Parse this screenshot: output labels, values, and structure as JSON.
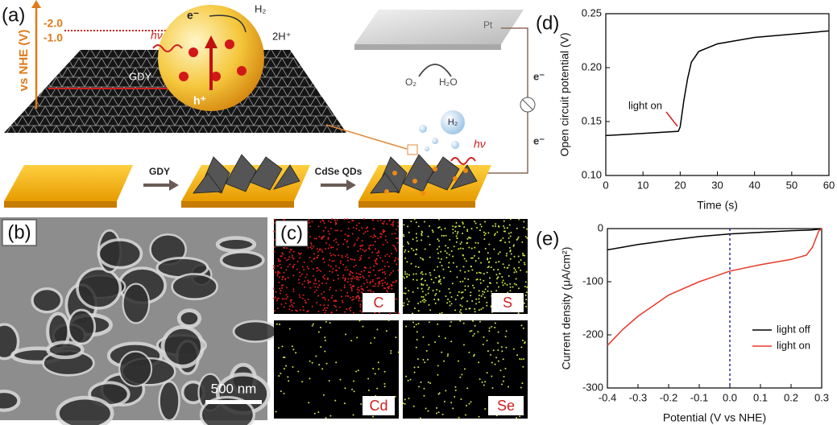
{
  "panels": {
    "a": {
      "label": "(a)",
      "axis_label": "vs NHE (V)",
      "ticks": [
        "-2.0",
        "-1.0"
      ],
      "hv": "hν",
      "electron": "e⁻",
      "h2": "H₂",
      "protons": "2H⁺",
      "gdy": "GDY",
      "hole": "h⁺",
      "pt": "Pt",
      "o2": "O₂",
      "h2o": "H₂O",
      "circuit_electrons": [
        "e⁻",
        "e⁻"
      ],
      "bubble": "H₂",
      "hv2": "hν",
      "step1": "GDY",
      "step2": "CdSe QDs"
    },
    "b": {
      "label": "(b)",
      "scale": "500 nm"
    },
    "c": {
      "label": "(c)",
      "maps": [
        "C",
        "S",
        "Cd",
        "Se"
      ]
    }
  },
  "chart_data": [
    {
      "type": "line",
      "panel": "(d)",
      "xlabel": "Time (s)",
      "ylabel": "Open circuit potential (V)",
      "x": [
        0,
        10,
        19.5,
        20,
        21,
        22,
        23,
        25,
        30,
        40,
        50,
        60
      ],
      "series": [
        {
          "color": "#000000",
          "values": [
            0.137,
            0.139,
            0.141,
            0.145,
            0.17,
            0.19,
            0.205,
            0.215,
            0.222,
            0.228,
            0.231,
            0.234
          ]
        }
      ],
      "xlim": [
        0,
        60
      ],
      "xticks": [
        0,
        10,
        20,
        30,
        40,
        50,
        60
      ],
      "ylim": [
        0.1,
        0.25
      ],
      "yticks": [
        {
          "value": 0.1,
          "label": "0.10"
        },
        {
          "value": 0.15,
          "label": "0.15"
        },
        {
          "value": 0.2,
          "label": "0.20"
        },
        {
          "value": 0.25,
          "label": "0.25"
        }
      ],
      "annotation": "light on"
    },
    {
      "type": "line",
      "panel": "(e)",
      "xlabel": "Potential (V vs NHE)",
      "ylabel": "Current density (μA/cm²)",
      "x": [
        -0.4,
        -0.35,
        -0.3,
        -0.25,
        -0.2,
        -0.1,
        0,
        0.1,
        0.2,
        0.25,
        0.27,
        0.29,
        0.3
      ],
      "series": [
        {
          "name": "light off",
          "color": "#000000",
          "values": [
            -40,
            -35,
            -30,
            -26,
            -22,
            -15,
            -10,
            -7,
            -4,
            -3,
            -2.5,
            -1,
            0
          ]
        },
        {
          "name": "light on",
          "color": "#e8392a",
          "values": [
            -220,
            -190,
            -165,
            -145,
            -125,
            -100,
            -80,
            -68,
            -58,
            -50,
            -35,
            -5,
            0
          ]
        }
      ],
      "xlim": [
        -0.4,
        0.3
      ],
      "xticks": [
        -0.4,
        -0.3,
        -0.2,
        -0.1,
        {
          "value": 0,
          "label": "0.0"
        },
        0.1,
        0.2,
        0.3
      ],
      "ylim": [
        -300,
        0
      ],
      "yticks": [
        -300,
        -200,
        -100,
        0
      ],
      "vline": 0,
      "vline_color": "#2a2aa8",
      "legend": "lower-right"
    }
  ]
}
